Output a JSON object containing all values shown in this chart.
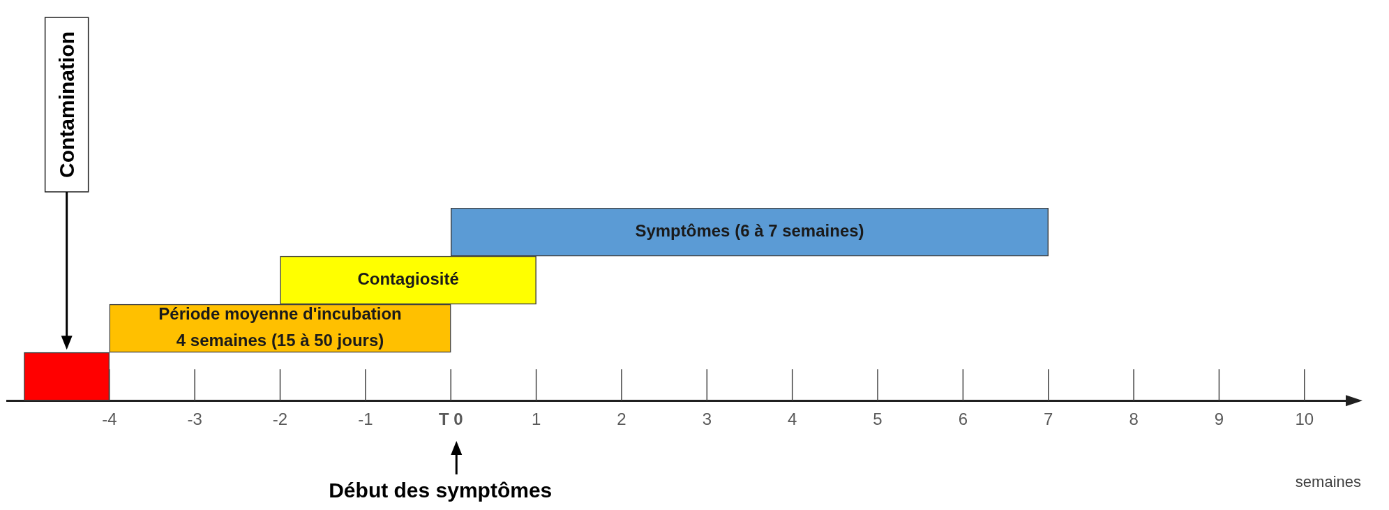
{
  "chart_data": {
    "type": "bar",
    "orientation": "horizontal",
    "categories": [
      "Symptômes (6 à 7 semaines)",
      "Contagiosité",
      "Période moyenne d'incubation\n4 semaines (15 à 50 jours)",
      null
    ],
    "base": [
      0,
      -2,
      -4,
      -5
    ],
    "values": [
      7,
      3,
      4,
      1
    ],
    "colors": [
      "#5b9bd5",
      "#ffff00",
      "#ffc000",
      "#ff0000"
    ],
    "xlim": [
      -5.2,
      10.5
    ],
    "xticks": [
      -4,
      -3,
      -2,
      -1,
      {
        "value": 0,
        "label": "T 0"
      },
      1,
      2,
      3,
      4,
      5,
      6,
      7,
      8,
      9,
      10
    ],
    "xlabel": "semaines",
    "tick_labels": "x",
    "grid": false,
    "legend": false,
    "annotations": [
      "Contamination",
      "Début des symptômes"
    ]
  }
}
